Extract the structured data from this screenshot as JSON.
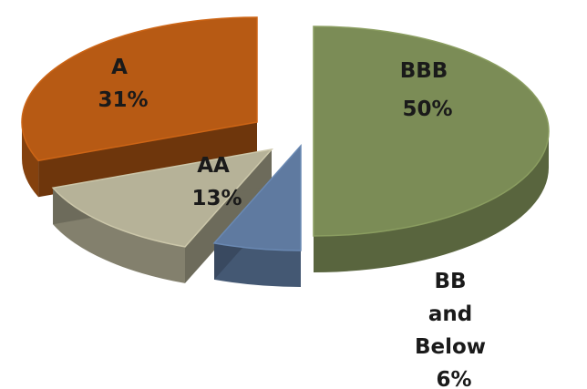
{
  "chart_data": {
    "type": "pie",
    "style": "3d-exploded",
    "categories": [
      "BBB",
      "BB and Below",
      "AA",
      "A"
    ],
    "values": [
      50,
      6,
      13,
      31
    ],
    "labels": [
      {
        "category": "BBB",
        "lines": [
          "BBB",
          "50%"
        ]
      },
      {
        "category": "BB and Below",
        "lines": [
          "BB",
          "and",
          "Below",
          "6%"
        ]
      },
      {
        "category": "AA",
        "lines": [
          "AA",
          "13%"
        ]
      },
      {
        "category": "A",
        "lines": [
          "A",
          "31%"
        ]
      }
    ],
    "colors": {
      "BBB": "#7b8c56",
      "BB and Below": "#5f7aa0",
      "AA": "#b6b298",
      "A": "#b75a14"
    },
    "legend": "none"
  }
}
